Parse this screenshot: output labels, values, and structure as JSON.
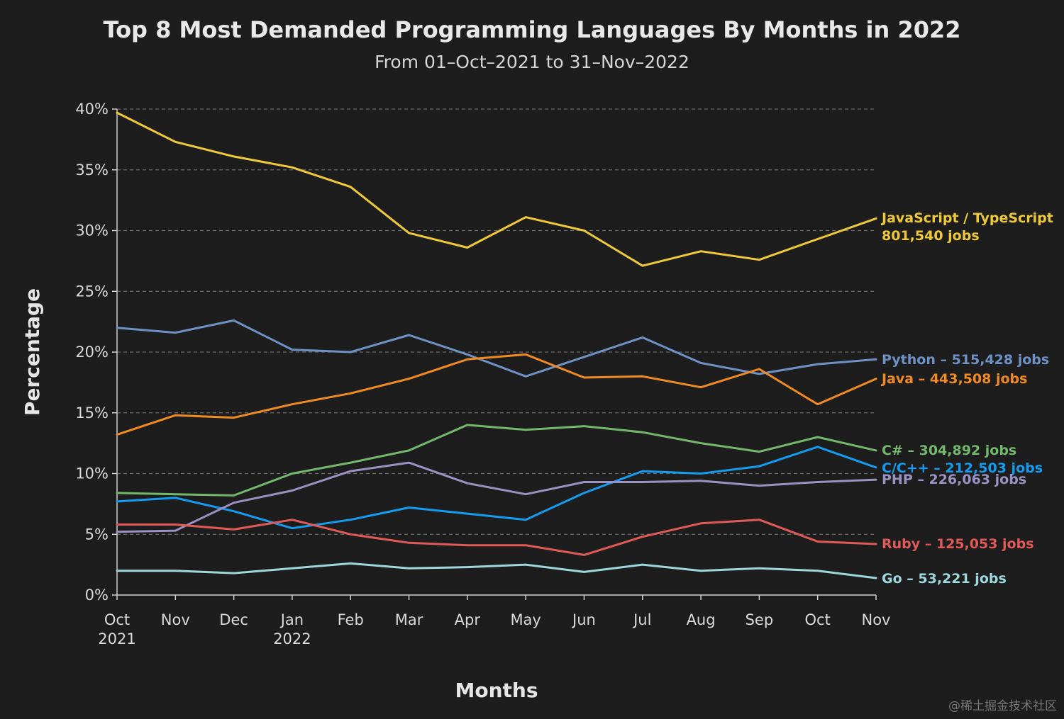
{
  "chart_data": {
    "type": "line",
    "title": "Top 8 Most Demanded Programming Languages By Months in 2022",
    "subtitle": "From 01–Oct–2021 to 31–Nov–2022",
    "xlabel": "Months",
    "ylabel": "Percentage",
    "ylim": [
      0,
      40
    ],
    "yticks": [
      0,
      5,
      10,
      15,
      20,
      25,
      30,
      35,
      40
    ],
    "ytick_labels": [
      "0%",
      "5%",
      "10%",
      "15%",
      "20%",
      "25%",
      "30%",
      "35%",
      "40%"
    ],
    "categories": [
      "Oct",
      "Nov",
      "Dec",
      "Jan",
      "Feb",
      "Mar",
      "Apr",
      "May",
      "Jun",
      "Jul",
      "Aug",
      "Sep",
      "Oct",
      "Nov"
    ],
    "category_years": {
      "0": "2021",
      "3": "2022"
    },
    "grid": true,
    "series": [
      {
        "name": "JavaScript / TypeScript",
        "label_line1": "JavaScript / TypeScript",
        "label_line2": "801,540 jobs",
        "color": "#f0c93b",
        "values": [
          39.7,
          37.3,
          36.1,
          35.2,
          33.6,
          29.8,
          28.6,
          31.1,
          30.0,
          27.1,
          28.3,
          27.6,
          29.3,
          31.0
        ]
      },
      {
        "name": "Python",
        "label_line1": "Python – 515,428 jobs",
        "color": "#6f92c6",
        "values": [
          22.0,
          21.6,
          22.6,
          20.2,
          20.0,
          21.4,
          19.8,
          18.0,
          19.6,
          21.2,
          19.1,
          18.2,
          19.0,
          19.4
        ]
      },
      {
        "name": "Java",
        "label_line1": "Java – 443,508 jobs",
        "color": "#f08a24",
        "values": [
          13.2,
          14.8,
          14.6,
          15.7,
          16.6,
          17.8,
          19.4,
          19.8,
          17.9,
          18.0,
          17.1,
          18.6,
          15.7,
          17.8
        ]
      },
      {
        "name": "C#",
        "label_line1": "C# – 304,892 jobs",
        "color": "#74b86d",
        "values": [
          8.4,
          8.3,
          8.2,
          10.0,
          10.9,
          11.9,
          14.0,
          13.6,
          13.9,
          13.4,
          12.5,
          11.8,
          13.0,
          11.9
        ]
      },
      {
        "name": "C/C++",
        "label_line1": "C/C++ – 212,503 jobs",
        "color": "#159cf1",
        "values": [
          7.7,
          8.0,
          6.9,
          5.5,
          6.2,
          7.2,
          6.7,
          6.2,
          8.4,
          10.2,
          10.0,
          10.6,
          12.2,
          10.5
        ]
      },
      {
        "name": "PHP",
        "label_line1": "PHP – 226,063 jobs",
        "color": "#9b91c2",
        "values": [
          5.2,
          5.3,
          7.6,
          8.6,
          10.2,
          10.9,
          9.2,
          8.3,
          9.3,
          9.3,
          9.4,
          9.0,
          9.3,
          9.5
        ]
      },
      {
        "name": "Ruby",
        "label_line1": "Ruby – 125,053 jobs",
        "color": "#e05b57",
        "values": [
          5.8,
          5.8,
          5.4,
          6.2,
          5.0,
          4.3,
          4.1,
          4.1,
          3.3,
          4.8,
          5.9,
          6.2,
          4.4,
          4.2
        ]
      },
      {
        "name": "Go",
        "label_line1": "Go – 53,221 jobs",
        "color": "#9ed7dd",
        "values": [
          2.0,
          2.0,
          1.8,
          2.2,
          2.6,
          2.2,
          2.3,
          2.5,
          1.9,
          2.5,
          2.0,
          2.2,
          2.0,
          1.4
        ]
      }
    ]
  },
  "watermark": "@稀土掘金技术社区"
}
